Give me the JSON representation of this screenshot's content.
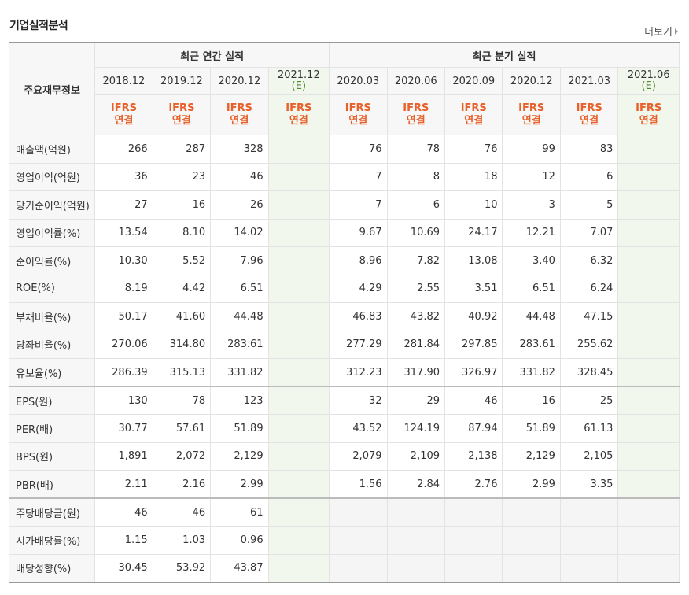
{
  "header": {
    "title": "기업실적분석",
    "more_label": "더보기"
  },
  "table": {
    "label_header": "주요재무정보",
    "group_annual": "최근 연간 실적",
    "group_quarter": "최근 분기 실적",
    "annual_periods": [
      {
        "year": "2018.12",
        "est": ""
      },
      {
        "year": "2019.12",
        "est": ""
      },
      {
        "year": "2020.12",
        "est": ""
      },
      {
        "year": "2021.12",
        "est": "(E)"
      }
    ],
    "quarter_periods": [
      {
        "year": "2020.03",
        "est": ""
      },
      {
        "year": "2020.06",
        "est": ""
      },
      {
        "year": "2020.09",
        "est": ""
      },
      {
        "year": "2020.12",
        "est": ""
      },
      {
        "year": "2021.03",
        "est": ""
      },
      {
        "year": "2021.06",
        "est": "(E)"
      }
    ],
    "ifrs_line1": "IFRS",
    "ifrs_line2": "연결",
    "rows": [
      {
        "label": "매출액(억원)",
        "annual": [
          "266",
          "287",
          "328",
          ""
        ],
        "quarter": [
          "76",
          "78",
          "76",
          "99",
          "83",
          ""
        ]
      },
      {
        "label": "영업이익(억원)",
        "annual": [
          "36",
          "23",
          "46",
          ""
        ],
        "quarter": [
          "7",
          "8",
          "18",
          "12",
          "6",
          ""
        ]
      },
      {
        "label": "당기순이익(억원)",
        "annual": [
          "27",
          "16",
          "26",
          ""
        ],
        "quarter": [
          "7",
          "6",
          "10",
          "3",
          "5",
          ""
        ]
      },
      {
        "label": "영업이익률(%)",
        "annual": [
          "13.54",
          "8.10",
          "14.02",
          ""
        ],
        "quarter": [
          "9.67",
          "10.69",
          "24.17",
          "12.21",
          "7.07",
          ""
        ]
      },
      {
        "label": "순이익률(%)",
        "annual": [
          "10.30",
          "5.52",
          "7.96",
          ""
        ],
        "quarter": [
          "8.96",
          "7.82",
          "13.08",
          "3.40",
          "6.32",
          ""
        ]
      },
      {
        "label": "ROE(%)",
        "annual": [
          "8.19",
          "4.42",
          "6.51",
          ""
        ],
        "quarter": [
          "4.29",
          "2.55",
          "3.51",
          "6.51",
          "6.24",
          ""
        ]
      },
      {
        "label": "부채비율(%)",
        "annual": [
          "50.17",
          "41.60",
          "44.48",
          ""
        ],
        "quarter": [
          "46.83",
          "43.82",
          "40.92",
          "44.48",
          "47.15",
          ""
        ]
      },
      {
        "label": "당좌비율(%)",
        "annual": [
          "270.06",
          "314.80",
          "283.61",
          ""
        ],
        "quarter": [
          "277.29",
          "281.84",
          "297.85",
          "283.61",
          "255.62",
          ""
        ]
      },
      {
        "label": "유보율(%)",
        "annual": [
          "286.39",
          "315.13",
          "331.82",
          ""
        ],
        "quarter": [
          "312.23",
          "317.90",
          "326.97",
          "331.82",
          "328.45",
          ""
        ]
      },
      {
        "label": "EPS(원)",
        "annual": [
          "130",
          "78",
          "123",
          ""
        ],
        "quarter": [
          "32",
          "29",
          "46",
          "16",
          "25",
          ""
        ]
      },
      {
        "label": "PER(배)",
        "annual": [
          "30.77",
          "57.61",
          "51.89",
          ""
        ],
        "quarter": [
          "43.52",
          "124.19",
          "87.94",
          "51.89",
          "61.13",
          ""
        ]
      },
      {
        "label": "BPS(원)",
        "annual": [
          "1,891",
          "2,072",
          "2,129",
          ""
        ],
        "quarter": [
          "2,079",
          "2,109",
          "2,138",
          "2,129",
          "2,105",
          ""
        ]
      },
      {
        "label": "PBR(배)",
        "annual": [
          "2.11",
          "2.16",
          "2.99",
          ""
        ],
        "quarter": [
          "1.56",
          "2.84",
          "2.76",
          "2.99",
          "3.35",
          ""
        ]
      },
      {
        "label": "주당배당금(원)",
        "annual": [
          "46",
          "46",
          "61",
          ""
        ],
        "quarter": null
      },
      {
        "label": "시가배당률(%)",
        "annual": [
          "1.15",
          "1.03",
          "0.96",
          ""
        ],
        "quarter": null
      },
      {
        "label": "배당성향(%)",
        "annual": [
          "30.45",
          "53.92",
          "43.87",
          ""
        ],
        "quarter": null
      }
    ]
  }
}
